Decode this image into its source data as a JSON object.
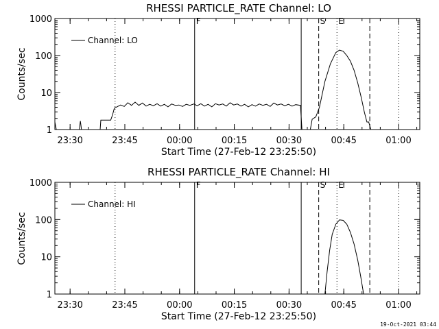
{
  "footer": {
    "timestamp": "19-Oct-2021 03:44"
  },
  "chart_data": [
    {
      "type": "line",
      "title": "RHESSI PARTICLE_RATE Channel: LO",
      "xlabel": "Start Time (27-Feb-12 23:25:50)",
      "ylabel": "Counts/sec",
      "y_scale": "log",
      "ylim": [
        1,
        1000
      ],
      "y_ticks": [
        "1",
        "10",
        "100",
        "1000"
      ],
      "x_ticks": [
        "23:30",
        "23:45",
        "00:00",
        "00:15",
        "00:30",
        "00:45",
        "01:00"
      ],
      "x_unit": "minutes from 23:25:50",
      "xlim": [
        0,
        100
      ],
      "legend": {
        "label": "Channel: LO",
        "placement": "top-left"
      },
      "markers": [
        {
          "x": 16.5,
          "style": "dotted",
          "label": ""
        },
        {
          "x": 38.3,
          "style": "solid",
          "label": "F"
        },
        {
          "x": 67.5,
          "style": "solid",
          "label": ""
        },
        {
          "x": 72.3,
          "style": "dashed",
          "label": "S"
        },
        {
          "x": 77.3,
          "style": "dotted",
          "label": "E"
        },
        {
          "x": 86.3,
          "style": "dashed",
          "label": ""
        },
        {
          "x": 94.2,
          "style": "dotted",
          "label": ""
        }
      ],
      "series": [
        {
          "values": [
            [
              0,
              1.6
            ],
            [
              0.4,
              1
            ],
            [
              6.7,
              1
            ],
            [
              7.0,
              1.7
            ],
            [
              7.3,
              1
            ],
            [
              12.4,
              1
            ],
            [
              12.6,
              1.8
            ],
            [
              15.3,
              1.8
            ],
            [
              15.8,
              2.5
            ],
            [
              16.3,
              3.8
            ],
            [
              17,
              4.1
            ],
            [
              18,
              4.6
            ],
            [
              19,
              4.2
            ],
            [
              20,
              5.3
            ],
            [
              21,
              4.5
            ],
            [
              22,
              5.5
            ],
            [
              23,
              4.5
            ],
            [
              24,
              5.2
            ],
            [
              25,
              4.3
            ],
            [
              26,
              4.8
            ],
            [
              27,
              4.4
            ],
            [
              28,
              5.0
            ],
            [
              29,
              4.3
            ],
            [
              30,
              4.8
            ],
            [
              31,
              4.1
            ],
            [
              32,
              4.9
            ],
            [
              33,
              4.5
            ],
            [
              34,
              4.6
            ],
            [
              35,
              4.2
            ],
            [
              36,
              4.8
            ],
            [
              37,
              4.5
            ],
            [
              38.1,
              4.9
            ],
            [
              39,
              4.4
            ],
            [
              40,
              5.0
            ],
            [
              41,
              4.3
            ],
            [
              42,
              4.8
            ],
            [
              43,
              4.1
            ],
            [
              44,
              5.0
            ],
            [
              45,
              4.6
            ],
            [
              46,
              4.9
            ],
            [
              47,
              4.3
            ],
            [
              48,
              5.3
            ],
            [
              49,
              4.6
            ],
            [
              50,
              4.9
            ],
            [
              51,
              4.3
            ],
            [
              52,
              4.8
            ],
            [
              53,
              4.1
            ],
            [
              54,
              4.7
            ],
            [
              55,
              4.3
            ],
            [
              56,
              4.9
            ],
            [
              57,
              4.5
            ],
            [
              58,
              4.8
            ],
            [
              59,
              4.2
            ],
            [
              60,
              5.2
            ],
            [
              61,
              4.6
            ],
            [
              62,
              4.9
            ],
            [
              63,
              4.4
            ],
            [
              64,
              4.8
            ],
            [
              65,
              4.3
            ],
            [
              66,
              4.7
            ],
            [
              67.3,
              4.5
            ],
            [
              67.7,
              1
            ],
            [
              70,
              1
            ],
            [
              70.5,
              1.9
            ],
            [
              71.5,
              2.2
            ],
            [
              72.5,
              4
            ],
            [
              74,
              20
            ],
            [
              75.5,
              60
            ],
            [
              77,
              120
            ],
            [
              78,
              140
            ],
            [
              79,
              130
            ],
            [
              80,
              100
            ],
            [
              81,
              70
            ],
            [
              82,
              40
            ],
            [
              83,
              18
            ],
            [
              84,
              7
            ],
            [
              84.8,
              3
            ],
            [
              85.5,
              1.6
            ],
            [
              86,
              1.6
            ],
            [
              86.6,
              1
            ]
          ]
        }
      ]
    },
    {
      "type": "line",
      "title": "RHESSI PARTICLE_RATE Channel: HI",
      "xlabel": "Start Time (27-Feb-12 23:25:50)",
      "ylabel": "Counts/sec",
      "y_scale": "log",
      "ylim": [
        1,
        1000
      ],
      "y_ticks": [
        "1",
        "10",
        "100",
        "1000"
      ],
      "x_ticks": [
        "23:30",
        "23:45",
        "00:00",
        "00:15",
        "00:30",
        "00:45",
        "01:00"
      ],
      "x_unit": "minutes from 23:25:50",
      "xlim": [
        0,
        100
      ],
      "legend": {
        "label": "Channel: HI",
        "placement": "top-left"
      },
      "markers": [
        {
          "x": 16.5,
          "style": "dotted",
          "label": ""
        },
        {
          "x": 38.3,
          "style": "solid",
          "label": "F"
        },
        {
          "x": 67.5,
          "style": "solid",
          "label": ""
        },
        {
          "x": 72.3,
          "style": "dashed",
          "label": "S"
        },
        {
          "x": 77.3,
          "style": "dotted",
          "label": "E"
        },
        {
          "x": 86.3,
          "style": "dashed",
          "label": ""
        },
        {
          "x": 94.2,
          "style": "dotted",
          "label": ""
        }
      ],
      "series": [
        {
          "values": [
            [
              74.0,
              1
            ],
            [
              74.6,
              4
            ],
            [
              75.3,
              15
            ],
            [
              76.0,
              40
            ],
            [
              77.0,
              75
            ],
            [
              78.0,
              98
            ],
            [
              79.0,
              95
            ],
            [
              80.0,
              75
            ],
            [
              81.0,
              45
            ],
            [
              82.0,
              22
            ],
            [
              83.0,
              8
            ],
            [
              83.8,
              3
            ],
            [
              84.6,
              1
            ]
          ]
        }
      ]
    }
  ]
}
